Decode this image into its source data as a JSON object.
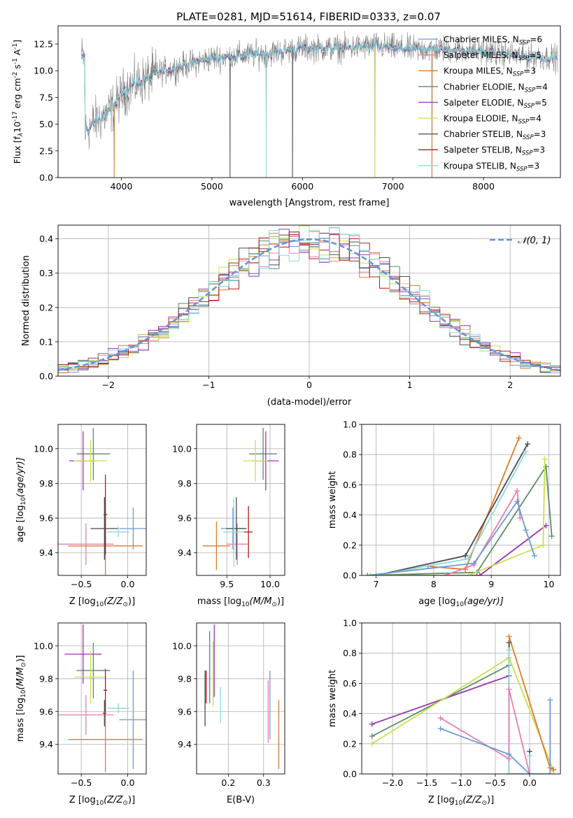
{
  "figure_title": "PLATE=0281, MJD=51614, FIBERID=0333, z=0.07",
  "colors": {
    "Chabrier MILES": "#6b9ad6",
    "Salpeter MILES": "#e87eb0",
    "Kroupa MILES": "#e07b28",
    "Chabrier ELODIE": "#5e8a6a",
    "Salpeter ELODIE": "#9b33b0",
    "Kroupa ELODIE": "#c8e04a",
    "Chabrier STELIB": "#4a4a4a",
    "Salpeter STELIB": "#b01c1c",
    "Kroupa STELIB": "#8edada",
    "data": "#808080",
    "gaussian": "#6495dc"
  },
  "chart_data": [
    {
      "id": "spectrum",
      "type": "line",
      "xlabel": "wavelength [Angstrom, rest frame]",
      "ylabel": "Flux [f",
      "ylabel_sub": "λ",
      "ylabel_mid": "10",
      "ylabel_sup1": "-17",
      "ylabel_rest": " erg cm",
      "ylabel_sup2": "-2",
      "ylabel_mid2": " s",
      "ylabel_sup3": "-1",
      "ylabel_mid3": " A",
      "ylabel_sup4": "-1",
      "ylabel_end": "]",
      "xlim": [
        3300,
        8850
      ],
      "ylim": [
        0,
        14.2
      ],
      "xticks": [
        4000,
        5000,
        6000,
        7000,
        8000
      ],
      "yticks": [
        0.0,
        2.5,
        5.0,
        7.5,
        10.0,
        12.5
      ],
      "ytick_labels": [
        "0.0",
        "2.5",
        "5.0",
        "7.5",
        "10.0",
        "12.5"
      ],
      "xtick_labels": [
        "4000",
        "5000",
        "6000",
        "7000",
        "8000"
      ],
      "continuum_anchors": [
        [
          3600,
          4.3
        ],
        [
          3700,
          5.2
        ],
        [
          3850,
          6.0
        ],
        [
          3950,
          7.1
        ],
        [
          4050,
          8.3
        ],
        [
          4200,
          8.9
        ],
        [
          4400,
          9.8
        ],
        [
          4700,
          10.5
        ],
        [
          5000,
          11.2
        ],
        [
          5300,
          11.4
        ],
        [
          5600,
          11.6
        ],
        [
          6000,
          12.1
        ],
        [
          6400,
          12.1
        ],
        [
          6800,
          12.3
        ],
        [
          7200,
          12.0
        ],
        [
          7600,
          12.0
        ],
        [
          8000,
          11.8
        ],
        [
          8400,
          11.4
        ],
        [
          8800,
          11.2
        ]
      ],
      "x_start": 3560,
      "x_end": 8820,
      "dropouts": [
        [
          3920,
          0
        ],
        [
          5200,
          0
        ],
        [
          5600,
          0
        ],
        [
          5890,
          0
        ],
        [
          6800,
          0
        ],
        [
          7430,
          0
        ]
      ],
      "legend": [
        {
          "label": "Chabrier MILES, N",
          "sub": "SSP",
          "suffix": "=6",
          "key": "Chabrier MILES"
        },
        {
          "label": "Salpeter MILES, N",
          "sub": "SSP",
          "suffix": "=5",
          "key": "Salpeter MILES"
        },
        {
          "label": "Kroupa MILES, N",
          "sub": "SSP",
          "suffix": "=3",
          "key": "Kroupa MILES"
        },
        {
          "label": "Chabrier ELODIE, N",
          "sub": "SSP",
          "suffix": "=4",
          "key": "Chabrier ELODIE"
        },
        {
          "label": "Salpeter ELODIE, N",
          "sub": "SSP",
          "suffix": "=5",
          "key": "Salpeter ELODIE"
        },
        {
          "label": "Kroupa ELODIE, N",
          "sub": "SSP",
          "suffix": "=4",
          "key": "Kroupa ELODIE"
        },
        {
          "label": "Chabrier STELIB, N",
          "sub": "SSP",
          "suffix": "=3",
          "key": "Chabrier STELIB"
        },
        {
          "label": "Salpeter STELIB, N",
          "sub": "SSP",
          "suffix": "=3",
          "key": "Salpeter STELIB"
        },
        {
          "label": "Kroupa STELIB, N",
          "sub": "SSP",
          "suffix": "=3",
          "key": "Kroupa STELIB"
        }
      ],
      "legend_placement": "top-right"
    },
    {
      "id": "residuals",
      "type": "line",
      "xlabel": "(data-model)/error",
      "ylabel": "Normed distribution",
      "xlim": [
        -2.5,
        2.5
      ],
      "ylim": [
        0,
        0.44
      ],
      "xticks": [
        -2,
        -1,
        0,
        1,
        2
      ],
      "xtick_labels": [
        "−2",
        "−1",
        "0",
        "1",
        "2"
      ],
      "yticks": [
        0.0,
        0.1,
        0.2,
        0.3,
        0.4
      ],
      "ytick_labels": [
        "0.0",
        "0.1",
        "0.2",
        "0.3",
        "0.4"
      ],
      "grid": true,
      "legend": {
        "label": "𝒩(0, 1)",
        "placement": "top-right"
      },
      "bin_width": 0.1
    },
    {
      "id": "age-vs-Z",
      "type": "scatter",
      "xlabel": "Z [log",
      "xlabel_sub": "10",
      "xlabel_rest": "(Z/Z",
      "xlabel_sub2": "⊙",
      "xlabel_end": ")]",
      "ylabel": "age  [log",
      "ylabel_sub": "10",
      "ylabel_rest": "(age/yr)]",
      "xlim": [
        -0.75,
        0.2
      ],
      "ylim": [
        9.27,
        10.14
      ],
      "xticks": [
        -0.5,
        0.0
      ],
      "xtick_labels": [
        "−0.5",
        "0.0"
      ],
      "yticks": [
        9.4,
        9.6,
        9.8,
        10.0
      ],
      "ytick_labels": [
        "9.4",
        "9.6",
        "9.8",
        "10.0"
      ],
      "grid": true,
      "points": [
        {
          "key": "Chabrier MILES",
          "x": 0.06,
          "y": 9.54,
          "xerr": 0.15,
          "yerr": 0.12
        },
        {
          "key": "Salpeter MILES",
          "x": -0.45,
          "y": 9.45,
          "xerr": 0.3,
          "yerr": 0.12
        },
        {
          "key": "Kroupa MILES",
          "x": -0.24,
          "y": 9.44,
          "xerr": 0.4,
          "yerr": 0.2
        },
        {
          "key": "Chabrier ELODIE",
          "x": -0.37,
          "y": 9.97,
          "xerr": 0.18,
          "yerr": 0.15
        },
        {
          "key": "Salpeter ELODIE",
          "x": -0.48,
          "y": 9.93,
          "xerr": 0.15,
          "yerr": 0.17
        },
        {
          "key": "Kroupa ELODIE",
          "x": -0.4,
          "y": 9.93,
          "xerr": 0.18,
          "yerr": 0.12
        },
        {
          "key": "Chabrier STELIB",
          "x": -0.25,
          "y": 9.54,
          "xerr": 0.15,
          "yerr": 0.18
        },
        {
          "key": "Salpeter STELIB",
          "x": -0.24,
          "y": 9.62,
          "xerr": 0.02,
          "yerr": 0.23
        },
        {
          "key": "Kroupa STELIB",
          "x": -0.1,
          "y": 9.52,
          "xerr": 0.12,
          "yerr": 0.03
        }
      ]
    },
    {
      "id": "age-vs-mass",
      "type": "scatter",
      "xlabel": "mass [log",
      "xlabel_sub": "10",
      "xlabel_rest": "(M/M",
      "xlabel_sub2": "⊙",
      "xlabel_end": ")]",
      "xlim": [
        9.15,
        10.17
      ],
      "ylim": [
        9.27,
        10.14
      ],
      "xticks": [
        9.5,
        10.0
      ],
      "xtick_labels": [
        "9.5",
        "10.0"
      ],
      "yticks": [
        9.4,
        9.6,
        9.8,
        10.0
      ],
      "ytick_labels": [
        "9.4",
        "9.6",
        "9.8",
        "10.0"
      ],
      "grid": true,
      "points": [
        {
          "key": "Chabrier MILES",
          "x": 9.57,
          "y": 9.54,
          "xerr": 0.14,
          "yerr": 0.12
        },
        {
          "key": "Salpeter MILES",
          "x": 9.62,
          "y": 9.45,
          "xerr": 0.12,
          "yerr": 0.12
        },
        {
          "key": "Kroupa MILES",
          "x": 9.38,
          "y": 9.44,
          "xerr": 0.16,
          "yerr": 0.14
        },
        {
          "key": "Chabrier ELODIE",
          "x": 9.92,
          "y": 9.97,
          "xerr": 0.16,
          "yerr": 0.15
        },
        {
          "key": "Salpeter ELODIE",
          "x": 9.95,
          "y": 9.93,
          "xerr": 0.15,
          "yerr": 0.17
        },
        {
          "key": "Kroupa ELODIE",
          "x": 9.83,
          "y": 9.93,
          "xerr": 0.14,
          "yerr": 0.12
        },
        {
          "key": "Chabrier STELIB",
          "x": 9.61,
          "y": 9.54,
          "xerr": 0.12,
          "yerr": 0.18
        },
        {
          "key": "Salpeter STELIB",
          "x": 9.75,
          "y": 9.52,
          "xerr": 0.05,
          "yerr": 0.15
        },
        {
          "key": "Kroupa STELIB",
          "x": 9.58,
          "y": 9.52,
          "xerr": 0.12,
          "yerr": 0.2
        }
      ]
    },
    {
      "id": "weight-vs-age",
      "type": "line",
      "xlabel": "age  [log",
      "xlabel_sub": "10",
      "xlabel_rest": "(age/yr)]",
      "ylabel": "mass weight",
      "xlim": [
        6.75,
        10.2
      ],
      "ylim": [
        0,
        1.0
      ],
      "xticks": [
        7,
        8,
        9,
        10
      ],
      "xtick_labels": [
        "7",
        "8",
        "9",
        "10"
      ],
      "yticks": [
        0.0,
        0.2,
        0.4,
        0.6,
        0.8,
        1.0
      ],
      "ytick_labels": [
        "0.0",
        "0.2",
        "0.4",
        "0.6",
        "0.8",
        "1.0"
      ],
      "grid": true,
      "series": [
        {
          "key": "Kroupa MILES",
          "x": [
            7.9,
            8.55,
            9.48
          ],
          "y": [
            0.06,
            0.04,
            0.91
          ]
        },
        {
          "key": "Chabrier STELIB",
          "x": [
            7.0,
            8.55,
            9.63
          ],
          "y": [
            0.0,
            0.13,
            0.87
          ]
        },
        {
          "key": "Kroupa STELIB",
          "x": [
            7.0,
            8.6,
            9.6
          ],
          "y": [
            0.0,
            0.11,
            0.82
          ]
        },
        {
          "key": "Chabrier ELODIE",
          "x": [
            6.85,
            8.75,
            9.95,
            10.05
          ],
          "y": [
            0.0,
            0.02,
            0.72,
            0.26
          ]
        },
        {
          "key": "Salpeter ELODIE",
          "x": [
            6.9,
            8.8,
            9.95
          ],
          "y": [
            0.0,
            0.0,
            0.33
          ]
        },
        {
          "key": "Kroupa ELODIE",
          "x": [
            6.9,
            8.6,
            9.9,
            9.93
          ],
          "y": [
            0.0,
            0.0,
            0.2,
            0.77
          ]
        },
        {
          "key": "Salpeter MILES",
          "x": [
            8.2,
            8.7,
            9.45,
            9.5
          ],
          "y": [
            0.0,
            0.07,
            0.56,
            0.38
          ]
        },
        {
          "key": "Chabrier MILES",
          "x": [
            6.85,
            8.7,
            9.45,
            9.6,
            9.75
          ],
          "y": [
            0.0,
            0.08,
            0.49,
            0.3,
            0.13
          ]
        }
      ]
    },
    {
      "id": "mass-vs-Z",
      "type": "scatter",
      "xlabel": "Z [log",
      "xlabel_sub": "10",
      "xlabel_rest": "(Z/Z",
      "xlabel_sub2": "⊙",
      "xlabel_end": ")]",
      "ylabel": "mass [log",
      "ylabel_sub": "10",
      "ylabel_rest": "(M/M",
      "ylabel_sub2": "⊙",
      "ylabel_end": ")]",
      "xlim": [
        -0.75,
        0.2
      ],
      "ylim": [
        9.22,
        10.14
      ],
      "xticks": [
        -0.5,
        0.0
      ],
      "xtick_labels": [
        "−0.5",
        "0.0"
      ],
      "yticks": [
        9.4,
        9.6,
        9.8,
        10.0
      ],
      "ytick_labels": [
        "9.4",
        "9.6",
        "9.8",
        "10.0"
      ],
      "grid": true,
      "points": [
        {
          "key": "Chabrier MILES",
          "x": 0.06,
          "y": 9.55,
          "xerr": 0.15,
          "yerr": 0.3
        },
        {
          "key": "Salpeter MILES",
          "x": -0.45,
          "y": 9.58,
          "xerr": 0.3,
          "yerr": 0.12
        },
        {
          "key": "Kroupa MILES",
          "x": -0.24,
          "y": 9.43,
          "xerr": 0.4,
          "yerr": 0.2
        },
        {
          "key": "Chabrier ELODIE",
          "x": -0.37,
          "y": 9.85,
          "xerr": 0.18,
          "yerr": 0.17
        },
        {
          "key": "Salpeter ELODIE",
          "x": -0.48,
          "y": 9.95,
          "xerr": 0.2,
          "yerr": 0.18
        },
        {
          "key": "Kroupa ELODIE",
          "x": -0.4,
          "y": 9.81,
          "xerr": 0.17,
          "yerr": 0.16
        },
        {
          "key": "Chabrier STELIB",
          "x": -0.25,
          "y": 9.59,
          "xerr": 0.02,
          "yerr": 0.08
        },
        {
          "key": "Salpeter STELIB",
          "x": -0.24,
          "y": 9.73,
          "xerr": 0.02,
          "yerr": 0.13
        },
        {
          "key": "Kroupa STELIB",
          "x": -0.1,
          "y": 9.62,
          "xerr": 0.12,
          "yerr": 0.03
        }
      ]
    },
    {
      "id": "mass-vs-ebv",
      "type": "scatter",
      "xlabel": "E(B-V)",
      "xlim": [
        0.11,
        0.36
      ],
      "ylim": [
        9.22,
        10.14
      ],
      "xticks": [
        0.2,
        0.3
      ],
      "xtick_labels": [
        "0.2",
        "0.3"
      ],
      "yticks": [
        9.4,
        9.6,
        9.8,
        10.0
      ],
      "ytick_labels": [
        "9.4",
        "9.6",
        "9.8",
        "10.0"
      ],
      "grid": true,
      "points": [
        {
          "key": "Chabrier MILES",
          "x": 0.318,
          "y": 9.64,
          "xerr": 0,
          "yerr": 0.21
        },
        {
          "key": "Salpeter MILES",
          "x": 0.313,
          "y": 9.6,
          "xerr": 0,
          "yerr": 0.19
        },
        {
          "key": "Kroupa MILES",
          "x": 0.343,
          "y": 9.46,
          "xerr": 0,
          "yerr": 0.21
        },
        {
          "key": "Chabrier ELODIE",
          "x": 0.147,
          "y": 9.87,
          "xerr": 0,
          "yerr": 0.22
        },
        {
          "key": "Salpeter ELODIE",
          "x": 0.16,
          "y": 9.91,
          "xerr": 0,
          "yerr": 0.22
        },
        {
          "key": "Kroupa ELODIE",
          "x": 0.157,
          "y": 9.83,
          "xerr": 0,
          "yerr": 0.2
        },
        {
          "key": "Chabrier STELIB",
          "x": 0.134,
          "y": 9.68,
          "xerr": 0,
          "yerr": 0.17
        },
        {
          "key": "Salpeter STELIB",
          "x": 0.137,
          "y": 9.75,
          "xerr": 0,
          "yerr": 0.1
        },
        {
          "key": "Kroupa STELIB",
          "x": 0.178,
          "y": 9.64,
          "xerr": 0,
          "yerr": 0.11
        }
      ]
    },
    {
      "id": "weight-vs-Z",
      "type": "line",
      "xlabel": "Z [log",
      "xlabel_sub": "10",
      "xlabel_rest": "(Z/Z",
      "xlabel_sub2": "⊙",
      "xlabel_end": ")]",
      "ylabel": "mass weight",
      "xlim": [
        -2.45,
        0.45
      ],
      "ylim": [
        0,
        1.0
      ],
      "xticks": [
        -2.0,
        -1.5,
        -1.0,
        -0.5,
        0.0
      ],
      "xtick_labels": [
        "−2.0",
        "−1.5",
        "−1.0",
        "−0.5",
        "0.0"
      ],
      "yticks": [
        0.0,
        0.2,
        0.4,
        0.6,
        0.8,
        1.0
      ],
      "ytick_labels": [
        "0.0",
        "0.2",
        "0.4",
        "0.6",
        "0.8",
        "1.0"
      ],
      "grid": true,
      "series": [
        {
          "key": "Salpeter ELODIE",
          "x": [
            -2.3,
            -0.3,
            -0.3
          ],
          "y": [
            0.33,
            0.65,
            0.0
          ]
        },
        {
          "key": "Chabrier ELODIE",
          "x": [
            -2.3,
            -0.3,
            -0.3
          ],
          "y": [
            0.25,
            0.72,
            0.0
          ]
        },
        {
          "key": "Kroupa ELODIE",
          "x": [
            -2.3,
            -0.3,
            0.35
          ],
          "y": [
            0.2,
            0.77,
            0.02
          ]
        },
        {
          "key": "Kroupa MILES",
          "x": [
            -0.3,
            0.3,
            0.35
          ],
          "y": [
            0.91,
            0.04,
            0.03
          ]
        },
        {
          "key": "Chabrier STELIB",
          "x": [
            -0.3,
            -0.3,
            0.0,
            0.0
          ],
          "y": [
            0.87,
            0.0,
            0.0,
            0.15
          ]
        },
        {
          "key": "Kroupa STELIB",
          "x": [
            -0.3,
            -0.3,
            0.0,
            0.0
          ],
          "y": [
            0.82,
            0.0,
            0.0,
            0.12
          ]
        },
        {
          "key": "Salpeter MILES",
          "x": [
            -1.3,
            -0.3,
            -0.3,
            0.0
          ],
          "y": [
            0.37,
            0.1,
            0.56,
            0.0
          ]
        },
        {
          "key": "Chabrier MILES",
          "x": [
            -1.3,
            -0.3,
            0.0,
            0.3,
            0.3
          ],
          "y": [
            0.3,
            0.13,
            0.0,
            0.0,
            0.49
          ]
        }
      ]
    }
  ]
}
